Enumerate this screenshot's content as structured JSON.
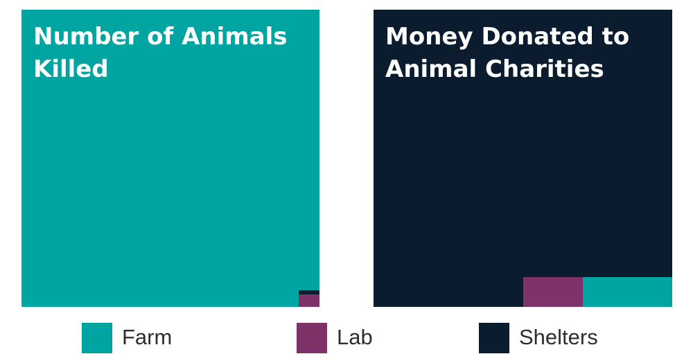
{
  "colors": {
    "farm": "#00a5a2",
    "lab": "#7e3368",
    "shelters": "#0c1c2f",
    "background": "#ffffff",
    "title_text": "#ffffff",
    "legend_text": "#2e2e2e"
  },
  "chart_data": [
    {
      "type": "treemap",
      "title": "Number of Animals Killed",
      "categories": [
        "Farm",
        "Lab",
        "Shelters"
      ],
      "values": [
        99.6,
        0.3,
        0.1
      ],
      "unit": "share of total (%)"
    },
    {
      "type": "treemap",
      "title": "Money Donated to Animal Charities",
      "categories": [
        "Farm",
        "Lab",
        "Shelters"
      ],
      "values": [
        3,
        2,
        95
      ],
      "unit": "share of total (%)"
    }
  ],
  "legend": {
    "items": [
      {
        "label": "Farm",
        "key": "farm"
      },
      {
        "label": "Lab",
        "key": "lab"
      },
      {
        "label": "Shelters",
        "key": "shelters"
      }
    ]
  }
}
